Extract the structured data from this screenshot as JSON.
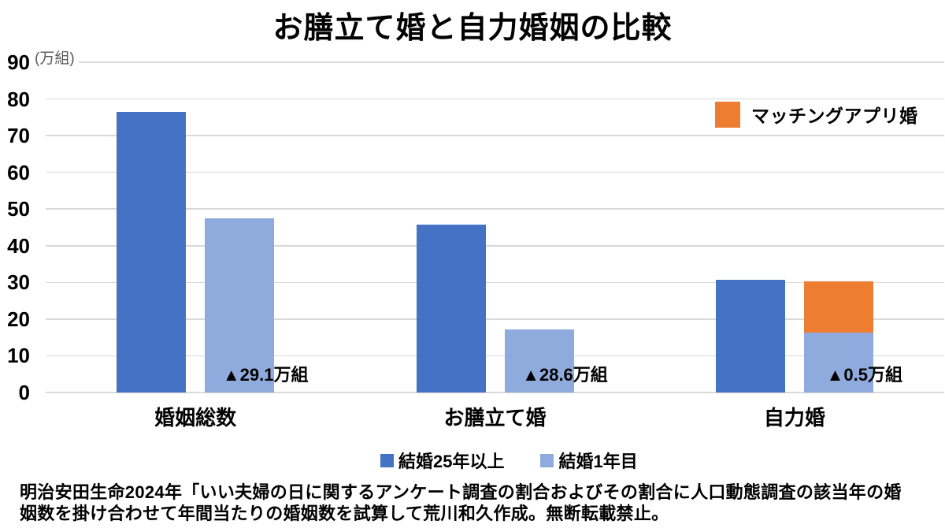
{
  "title": "お膳立て婚と自力婚姻の比較",
  "chart_data": {
    "type": "bar",
    "title": "お膳立て婚と自力婚姻の比較",
    "ylabel": "(万組)",
    "ylim": [
      0,
      90
    ],
    "ytick_step": 10,
    "yticks": [
      90,
      80,
      70,
      60,
      50,
      40,
      30,
      20,
      10,
      0
    ],
    "grid": true,
    "legend_position": "bottom",
    "categories": [
      "婚姻総数",
      "お膳立て婚",
      "自力婚"
    ],
    "series": [
      {
        "name": "結婚25年以上",
        "color": "#4472C4",
        "values": [
          76.5,
          45.8,
          30.8
        ]
      },
      {
        "name": "結婚1年目",
        "color": "#8FAADC",
        "values": [
          47.4,
          17.2,
          16.4
        ]
      },
      {
        "name": "マッチングアプリ婚",
        "color": "#ED7D31",
        "values": [
          null,
          null,
          13.9
        ],
        "stacked_on_series_index": 1
      }
    ],
    "annotations": [
      {
        "category_index": 0,
        "text": "▲29.1万組"
      },
      {
        "category_index": 1,
        "text": "▲28.6万組"
      },
      {
        "category_index": 2,
        "text": "▲0.5万組"
      }
    ]
  },
  "floating_legend": {
    "label": "マッチングアプリ婚",
    "color": "#ED7D31"
  },
  "footer": {
    "lines": [
      "明治安田生命2024年「いい夫婦の日に関するアンケート調査の割合およびその割合に人口動態調査の該当年の婚",
      "姻数を掛け合わせて年間当たりの婚姻数を試算して荒川和久作成。無断転載禁止。"
    ]
  },
  "colors": {
    "series_dark_blue": "#4472C4",
    "series_light_blue": "#8FAADC",
    "series_orange": "#ED7D31",
    "gridline": "#D9D9D9",
    "unit_label_text": "#595959",
    "background": "#FFFFFF"
  }
}
